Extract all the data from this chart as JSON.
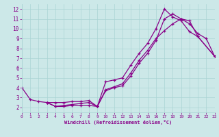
{
  "title": "",
  "xlabel": "Windchill (Refroidissement éolien,°C)",
  "xlim": [
    0,
    23
  ],
  "ylim": [
    1.5,
    12.5
  ],
  "xticks": [
    0,
    1,
    2,
    3,
    4,
    5,
    6,
    7,
    8,
    9,
    10,
    11,
    12,
    13,
    14,
    15,
    16,
    17,
    18,
    19,
    20,
    21,
    22,
    23
  ],
  "yticks": [
    2,
    3,
    4,
    5,
    6,
    7,
    8,
    9,
    10,
    11,
    12
  ],
  "bg_color": "#cce8e8",
  "line_color": "#880088",
  "grid_color": "#aad4d4",
  "series1": [
    [
      0,
      4.0
    ],
    [
      1,
      2.8
    ],
    [
      2,
      2.6
    ],
    [
      3,
      2.5
    ],
    [
      4,
      2.1
    ],
    [
      5,
      2.1
    ],
    [
      6,
      2.2
    ],
    [
      7,
      2.2
    ],
    [
      8,
      2.2
    ],
    [
      9,
      2.1
    ],
    [
      10,
      4.6
    ],
    [
      11,
      4.8
    ],
    [
      12,
      5.0
    ],
    [
      13,
      6.3
    ],
    [
      14,
      7.5
    ],
    [
      15,
      8.5
    ],
    [
      16,
      10.0
    ],
    [
      17,
      12.0
    ],
    [
      18,
      11.2
    ],
    [
      19,
      10.8
    ],
    [
      20,
      9.7
    ],
    [
      21,
      9.2
    ],
    [
      23,
      7.2
    ]
  ],
  "series2": [
    [
      3,
      2.5
    ],
    [
      4,
      2.1
    ],
    [
      5,
      2.2
    ],
    [
      6,
      2.3
    ],
    [
      7,
      2.4
    ],
    [
      8,
      2.5
    ],
    [
      9,
      2.1
    ],
    [
      10,
      3.7
    ],
    [
      11,
      4.0
    ],
    [
      12,
      4.2
    ],
    [
      13,
      5.2
    ],
    [
      14,
      6.5
    ],
    [
      15,
      7.5
    ],
    [
      16,
      8.8
    ],
    [
      17,
      11.0
    ],
    [
      18,
      11.5
    ],
    [
      19,
      11.0
    ],
    [
      20,
      10.8
    ],
    [
      21,
      9.2
    ],
    [
      23,
      7.2
    ]
  ],
  "series3": [
    [
      3,
      2.5
    ],
    [
      4,
      2.5
    ],
    [
      5,
      2.5
    ],
    [
      6,
      2.6
    ],
    [
      7,
      2.6
    ],
    [
      8,
      2.7
    ],
    [
      9,
      2.1
    ],
    [
      10,
      3.8
    ],
    [
      11,
      4.1
    ],
    [
      12,
      4.4
    ],
    [
      13,
      5.5
    ],
    [
      14,
      6.8
    ],
    [
      15,
      7.8
    ],
    [
      16,
      9.0
    ],
    [
      17,
      9.8
    ],
    [
      18,
      10.5
    ],
    [
      19,
      11.0
    ],
    [
      20,
      10.5
    ],
    [
      21,
      9.5
    ],
    [
      22,
      9.0
    ],
    [
      23,
      7.2
    ]
  ]
}
